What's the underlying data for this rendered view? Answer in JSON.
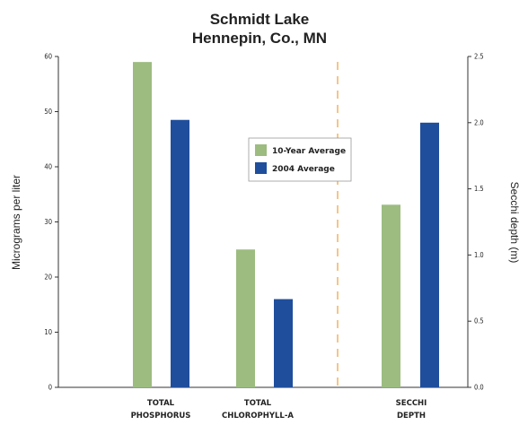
{
  "chart_data": {
    "type": "bar",
    "title": "Schmidt Lake",
    "subtitle": "Hennepin, Co., MN",
    "ylabel_left": "Micrograms per liter",
    "ylabel_right": "Secchi depth (m)",
    "ylim_left": [
      0,
      60
    ],
    "ylim_right": [
      0.0,
      2.5
    ],
    "yticks_left": [
      "0",
      "10",
      "20",
      "30",
      "40",
      "50",
      "60"
    ],
    "yticks_right": [
      "0.0",
      "0.5",
      "1.0",
      "1.5",
      "2.0",
      "2.5"
    ],
    "categories": [
      {
        "line1": "TOTAL",
        "line2": "PHOSPHORUS",
        "axis": "left"
      },
      {
        "line1": "TOTAL",
        "line2": "CHLOROPHYLL-A",
        "axis": "left"
      },
      {
        "line1": "SECCHI",
        "line2": "DEPTH",
        "axis": "right"
      }
    ],
    "series": [
      {
        "name": "10-Year Average",
        "color": "#9cbc80",
        "values": [
          59,
          25,
          1.38
        ]
      },
      {
        "name": "2004 Average",
        "color": "#1f4e9c",
        "values": [
          48.5,
          16,
          2.0
        ]
      }
    ],
    "divider_color": "#f0b86a",
    "legend_position": "center"
  }
}
